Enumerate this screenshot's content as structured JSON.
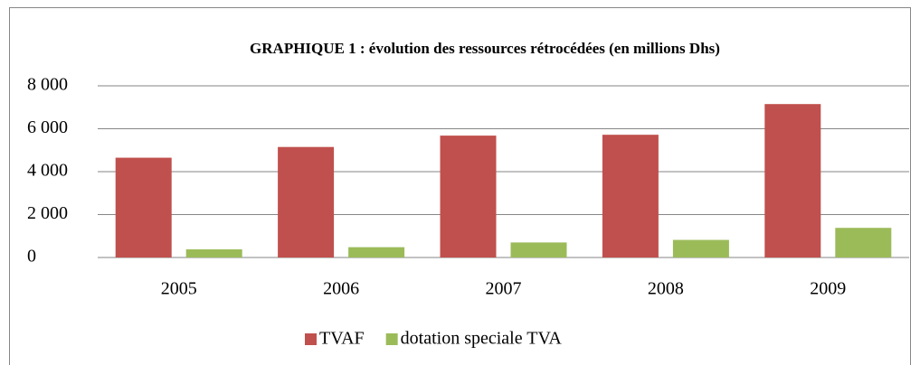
{
  "chart_data": {
    "type": "bar",
    "title": "GRAPHIQUE 1 : évolution des ressources rétrocédées (en millions Dhs)",
    "categories": [
      "2005",
      "2006",
      "2007",
      "2008",
      "2009"
    ],
    "series": [
      {
        "name": "TVAF",
        "color": "#c0504d",
        "values": [
          4650,
          5150,
          5680,
          5720,
          7150
        ]
      },
      {
        "name": "dotation speciale TVA",
        "color": "#9bbb59",
        "values": [
          380,
          480,
          700,
          820,
          1380
        ]
      }
    ],
    "ylim": [
      0,
      8000
    ],
    "yticks": [
      0,
      {
        "value": 2000,
        "label": "2 000"
      },
      {
        "value": 4000,
        "label": "4 000"
      },
      {
        "value": 6000,
        "label": "6 000"
      },
      {
        "value": 8000,
        "label": "8 000"
      }
    ],
    "grid": true,
    "legend": "bottom"
  }
}
